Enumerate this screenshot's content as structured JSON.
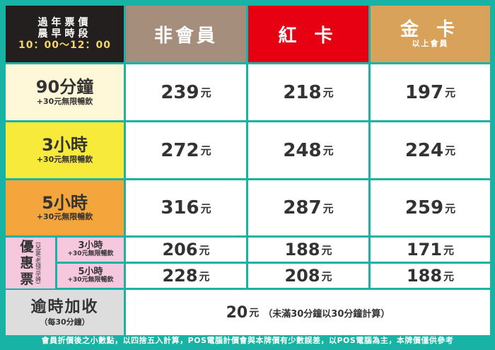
{
  "header": {
    "time_label_1": "過年票價",
    "time_label_2": "晨早時段",
    "time_range": "10：00～12：00",
    "col_nonmember": "非會員",
    "col_red": "紅 卡",
    "col_gold": "金 卡",
    "col_gold_sub": "以上會員"
  },
  "rows": [
    {
      "label": "90分鐘",
      "sub": "+30元無限暢飲",
      "prices": [
        "239",
        "218",
        "197"
      ]
    },
    {
      "label": "3小時",
      "sub": "+30元無限暢飲",
      "prices": [
        "272",
        "248",
        "224"
      ]
    },
    {
      "label": "5小時",
      "sub": "+30元無限暢飲",
      "prices": [
        "316",
        "287",
        "259"
      ]
    }
  ],
  "discount": {
    "title_chars": [
      "優",
      "惠",
      "票"
    ],
    "note": "(兒童/老殘/孕婦)",
    "items": [
      {
        "label": "3小時",
        "sub": "+30元無限暢飲",
        "prices": [
          "206",
          "188",
          "171"
        ]
      },
      {
        "label": "5小時",
        "sub": "+30元無限暢飲",
        "prices": [
          "228",
          "208",
          "188"
        ]
      }
    ]
  },
  "overtime": {
    "label": "逾時加收",
    "sub": "（每30分鐘）",
    "price": "20",
    "note": "（未滿30分鐘以30分鐘計算）"
  },
  "currency": "元",
  "footer": "會員折價後之小數點，以四捨五入計算，POS電腦計價會與本牌價有少數誤差，以POS電腦為主，本牌價僅供參考"
}
